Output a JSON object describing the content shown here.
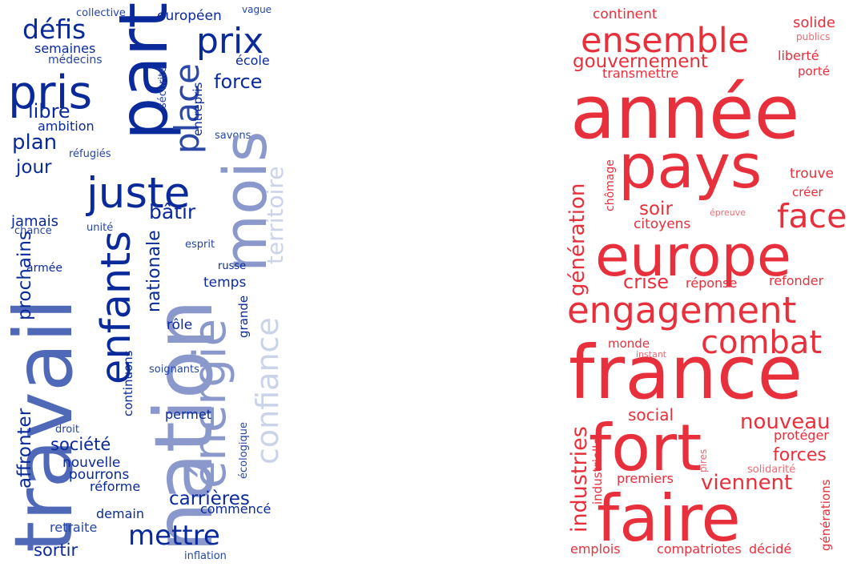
{
  "clouds": [
    {
      "id": "left",
      "words": [
        {
          "text": "collective",
          "color": "#2545a8"
        },
        {
          "text": "vague",
          "color": "#2545a8"
        },
        {
          "text": "défis",
          "color": "#0a2a9c"
        },
        {
          "text": "européen",
          "color": "#0a2a9c"
        },
        {
          "text": "prix",
          "color": "#0a2a9c"
        },
        {
          "text": "semaines",
          "color": "#0a2a9c"
        },
        {
          "text": "médecins",
          "color": "#2545a8"
        },
        {
          "text": "école",
          "color": "#0a2a9c"
        },
        {
          "text": "pris",
          "color": "#0a2a9c"
        },
        {
          "text": "part",
          "color": "#0a2a9c"
        },
        {
          "text": "force",
          "color": "#0a2a9c"
        },
        {
          "text": "libre",
          "color": "#0a2a9c"
        },
        {
          "text": "place",
          "color": "#2c48a6"
        },
        {
          "text": "sécurité",
          "color": "#2545a8"
        },
        {
          "text": "entrepris",
          "color": "#0a2a9c"
        },
        {
          "text": "ambition",
          "color": "#0a2a9c"
        },
        {
          "text": "plan",
          "color": "#0a2a9c"
        },
        {
          "text": "réfugiés",
          "color": "#2545a8"
        },
        {
          "text": "savons",
          "color": "#2545a8"
        },
        {
          "text": "jour",
          "color": "#0a2a9c"
        },
        {
          "text": "juste",
          "color": "#0a2a9c"
        },
        {
          "text": "mois",
          "color": "#8a98cc"
        },
        {
          "text": "territoire",
          "color": "#cbd3ea"
        },
        {
          "text": "travail",
          "color": "#5068b8"
        },
        {
          "text": "jamais",
          "color": "#0a2a9c"
        },
        {
          "text": "chance",
          "color": "#2545a8"
        },
        {
          "text": "unité",
          "color": "#2545a8"
        },
        {
          "text": "bâtir",
          "color": "#0a2a9c"
        },
        {
          "text": "nationale",
          "color": "#0a2a9c"
        },
        {
          "text": "esprit",
          "color": "#2545a8"
        },
        {
          "text": "russe",
          "color": "#0a2a9c"
        },
        {
          "text": "enfants",
          "color": "#0a2a9c"
        },
        {
          "text": "affronter",
          "color": "#0a2a9c"
        },
        {
          "text": "prochains",
          "color": "#0a2a9c"
        },
        {
          "text": "armée",
          "color": "#0a2a9c"
        },
        {
          "text": "temps",
          "color": "#0a2a9c"
        },
        {
          "text": "nation",
          "color": "#8a98cc"
        },
        {
          "text": "énergie",
          "color": "#8a98cc"
        },
        {
          "text": "confiance",
          "color": "#cbd3ea"
        },
        {
          "text": "rôle",
          "color": "#0a2a9c"
        },
        {
          "text": "grande",
          "color": "#0a2a9c"
        },
        {
          "text": "soignants",
          "color": "#2545a8"
        },
        {
          "text": "continuons",
          "color": "#0a2a9c"
        },
        {
          "text": "permet",
          "color": "#0a2a9c"
        },
        {
          "text": "écologique",
          "color": "#2545a8"
        },
        {
          "text": "droit",
          "color": "#2545a8"
        },
        {
          "text": "société",
          "color": "#0a2a9c"
        },
        {
          "text": "nouvelle",
          "color": "#0a2a9c"
        },
        {
          "text": "pourrons",
          "color": "#0a2a9c"
        },
        {
          "text": "réforme",
          "color": "#0a2a9c"
        },
        {
          "text": "carrières",
          "color": "#0a2a9c"
        },
        {
          "text": "commencé",
          "color": "#0a2a9c"
        },
        {
          "text": "demain",
          "color": "#0a2a9c"
        },
        {
          "text": "retraite",
          "color": "#2545a8"
        },
        {
          "text": "mettre",
          "color": "#0a2a9c"
        },
        {
          "text": "sortir",
          "color": "#0a2a9c"
        },
        {
          "text": "inflation",
          "color": "#2545a8"
        }
      ]
    },
    {
      "id": "right",
      "words": [
        {
          "text": "continent",
          "color": "#e8303c"
        },
        {
          "text": "solide",
          "color": "#e8303c"
        },
        {
          "text": "publics",
          "color": "#ef6a72"
        },
        {
          "text": "ensemble",
          "color": "#e8303c"
        },
        {
          "text": "gouvernement",
          "color": "#e8303c"
        },
        {
          "text": "liberté",
          "color": "#e8303c"
        },
        {
          "text": "transmettre",
          "color": "#e8303c"
        },
        {
          "text": "porté",
          "color": "#e8303c"
        },
        {
          "text": "année",
          "color": "#e8303c"
        },
        {
          "text": "pays",
          "color": "#e8303c"
        },
        {
          "text": "chômage",
          "color": "#e8303c"
        },
        {
          "text": "trouve",
          "color": "#e8303c"
        },
        {
          "text": "créer",
          "color": "#e8303c"
        },
        {
          "text": "épreuve",
          "color": "#ef6a72"
        },
        {
          "text": "génération",
          "color": "#e8303c"
        },
        {
          "text": "soir",
          "color": "#e8303c"
        },
        {
          "text": "face",
          "color": "#e8303c"
        },
        {
          "text": "citoyens",
          "color": "#e8303c"
        },
        {
          "text": "europe",
          "color": "#e8303c"
        },
        {
          "text": "crise",
          "color": "#e8303c"
        },
        {
          "text": "réponse",
          "color": "#e8303c"
        },
        {
          "text": "refonder",
          "color": "#e8303c"
        },
        {
          "text": "engagement",
          "color": "#e8303c"
        },
        {
          "text": "combat",
          "color": "#e8303c"
        },
        {
          "text": "monde",
          "color": "#e8303c"
        },
        {
          "text": "instant",
          "color": "#ef6a72"
        },
        {
          "text": "france",
          "color": "#e8303c"
        },
        {
          "text": "industries",
          "color": "#e8303c"
        },
        {
          "text": "social",
          "color": "#e8303c"
        },
        {
          "text": "nouveau",
          "color": "#e8303c"
        },
        {
          "text": "fort",
          "color": "#e8303c"
        },
        {
          "text": "protéger",
          "color": "#e8303c"
        },
        {
          "text": "industrielle",
          "color": "#e8303c"
        },
        {
          "text": "pires",
          "color": "#ef6a72"
        },
        {
          "text": "forces",
          "color": "#e8303c"
        },
        {
          "text": "solidarité",
          "color": "#ef6a72"
        },
        {
          "text": "premiers",
          "color": "#e8303c"
        },
        {
          "text": "viennent",
          "color": "#e8303c"
        },
        {
          "text": "générations",
          "color": "#e8303c"
        },
        {
          "text": "faire",
          "color": "#e8303c"
        },
        {
          "text": "emplois",
          "color": "#e8303c"
        },
        {
          "text": "compatriotes",
          "color": "#e8303c"
        },
        {
          "text": "décidé",
          "color": "#e8303c"
        }
      ]
    }
  ]
}
